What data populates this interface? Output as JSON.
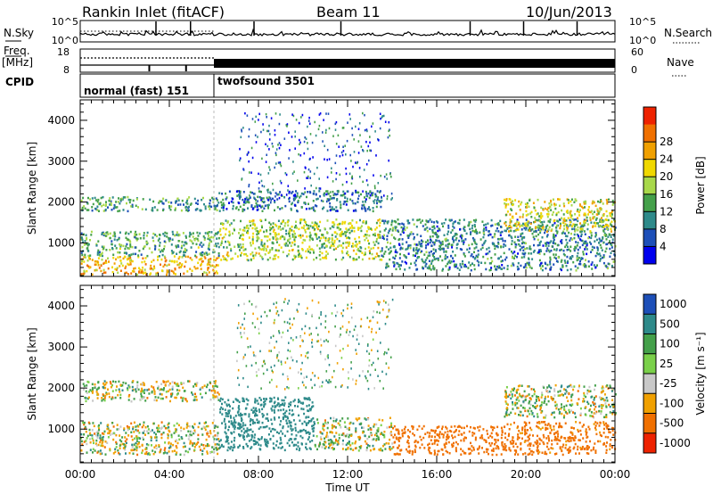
{
  "header": {
    "station": "Rankin Inlet (fitACF)",
    "beam": "Beam 11",
    "date": "10/Jun/2013"
  },
  "strips": {
    "nsky_label": "N.Sky",
    "nsearch_label": "N.Search",
    "freq_label": "Freq.",
    "freq_unit": "[MHz]",
    "nave_label": "Nave",
    "cpid_label": "CPID",
    "left_ticks_top": [
      "10^5",
      "10^0"
    ],
    "right_ticks_top": [
      "10^5",
      "10^0"
    ],
    "left_ticks_freq": [
      "18",
      "8"
    ],
    "right_ticks_nave": [
      "60",
      "0"
    ],
    "cpid_modes": [
      "normal (fast) 151",
      "twofsound 3501"
    ],
    "mode_change_hour": 6,
    "freq_dotted_until_hour": 6,
    "freq_spike_hours": [
      3.1,
      4.75
    ],
    "nsky_spike_hours": [
      3.4,
      4.95,
      7.8,
      11.7,
      17.5,
      19.9,
      22.3
    ]
  },
  "chart_data": [
    {
      "type": "heatmap",
      "title": "Power",
      "xlabel": "",
      "ylabel": "Slant Range [km]",
      "x_range_hours": [
        0,
        24
      ],
      "xlim": [
        0,
        24
      ],
      "ylim": [
        180,
        4500
      ],
      "y_ticks": [
        1000,
        2000,
        3000,
        4000
      ],
      "colorbar": {
        "label": "Power [dB]",
        "range": [
          0,
          32
        ],
        "ticks": [
          "4",
          "8",
          "12",
          "16",
          "20",
          "24",
          "28"
        ],
        "colors": [
          "#0000ee",
          "#1d4fb8",
          "#2e8a8a",
          "#44a04a",
          "#a8d84a",
          "#f0d800",
          "#f0a000",
          "#f07000",
          "#ee2200"
        ]
      },
      "bands": [
        {
          "hours": [
            0,
            6.2
          ],
          "range_km": [
            250,
            700
          ],
          "power_db": 22
        },
        {
          "hours": [
            0,
            6.2
          ],
          "range_km": [
            700,
            1300
          ],
          "power_db": 12
        },
        {
          "hours": [
            0,
            6.2
          ],
          "range_km": [
            1800,
            2150
          ],
          "power_db": 11
        },
        {
          "hours": [
            6.2,
            13.5
          ],
          "range_km": [
            600,
            1600
          ],
          "power_db": 16
        },
        {
          "hours": [
            6.2,
            13.5
          ],
          "range_km": [
            1800,
            2300
          ],
          "power_db": 8
        },
        {
          "hours": [
            13.5,
            24
          ],
          "range_km": [
            350,
            1600
          ],
          "power_db": 9
        },
        {
          "hours": [
            19,
            24
          ],
          "range_km": [
            1300,
            2100
          ],
          "power_db": 18
        }
      ]
    },
    {
      "type": "heatmap",
      "title": "Velocity",
      "xlabel": "Time UT",
      "ylabel": "Slant Range [km]",
      "x_ticks": [
        "00:00",
        "04:00",
        "08:00",
        "12:00",
        "16:00",
        "20:00",
        "00:00"
      ],
      "xlim": [
        0,
        24
      ],
      "ylim": [
        180,
        4500
      ],
      "y_ticks": [
        1000,
        2000,
        3000,
        4000
      ],
      "colorbar": {
        "label": "Velocity [m s⁻¹]",
        "ticks": [
          "1000",
          "500",
          "100",
          "25",
          "-25",
          "-100",
          "-500",
          "-1000"
        ],
        "colors": [
          "#1d4fb8",
          "#2e8a8a",
          "#44a04a",
          "#7ad04a",
          "#c8c8c8",
          "#f0a000",
          "#f07000",
          "#ee2200"
        ]
      },
      "bands": [
        {
          "hours": [
            0,
            6.2
          ],
          "range_km": [
            1700,
            2200
          ],
          "velocity": 0
        },
        {
          "hours": [
            0,
            6.2
          ],
          "range_km": [
            400,
            1200
          ],
          "velocity": 0
        },
        {
          "hours": [
            6.2,
            10.5
          ],
          "range_km": [
            500,
            1800
          ],
          "velocity": 300
        },
        {
          "hours": [
            10.5,
            14
          ],
          "range_km": [
            500,
            1300
          ],
          "velocity": 0
        },
        {
          "hours": [
            14,
            19
          ],
          "range_km": [
            400,
            1100
          ],
          "velocity": -300
        },
        {
          "hours": [
            19,
            24
          ],
          "range_km": [
            1300,
            2100
          ],
          "velocity": 0
        },
        {
          "hours": [
            19,
            24
          ],
          "range_km": [
            400,
            1200
          ],
          "velocity": -200
        }
      ]
    }
  ]
}
